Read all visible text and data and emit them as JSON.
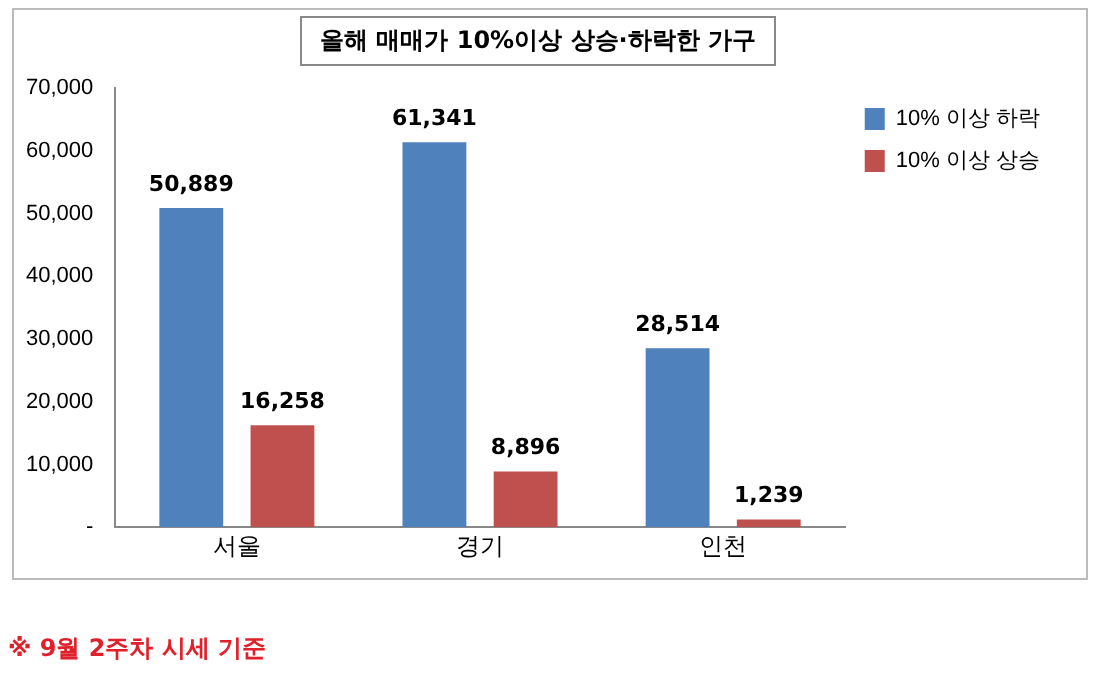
{
  "chart_data": {
    "type": "bar",
    "title": "올해 매매가 10%이상 상승·하락한 가구",
    "categories": [
      "서울",
      "경기",
      "인천"
    ],
    "series": [
      {
        "name": "10% 이상 하락",
        "color": "#4f81bd",
        "values": [
          50889,
          61341,
          28514
        ],
        "value_labels": [
          "50,889",
          "61,341",
          "28,514"
        ]
      },
      {
        "name": "10% 이상 상승",
        "color": "#c0504d",
        "values": [
          16258,
          8896,
          1239
        ],
        "value_labels": [
          "16,258",
          "8,896",
          "1,239"
        ]
      }
    ],
    "ylim": [
      0,
      70000
    ],
    "yticks": [
      {
        "value": 0,
        "label": "-"
      },
      {
        "value": 10000,
        "label": "10,000"
      },
      {
        "value": 20000,
        "label": "20,000"
      },
      {
        "value": 30000,
        "label": "30,000"
      },
      {
        "value": 40000,
        "label": "40,000"
      },
      {
        "value": 50000,
        "label": "50,000"
      },
      {
        "value": 60000,
        "label": "60,000"
      },
      {
        "value": 70000,
        "label": "70,000"
      }
    ],
    "grid": false,
    "legend": "top right",
    "annotations": [
      "※ 9월 2주차 시세 기준"
    ]
  }
}
